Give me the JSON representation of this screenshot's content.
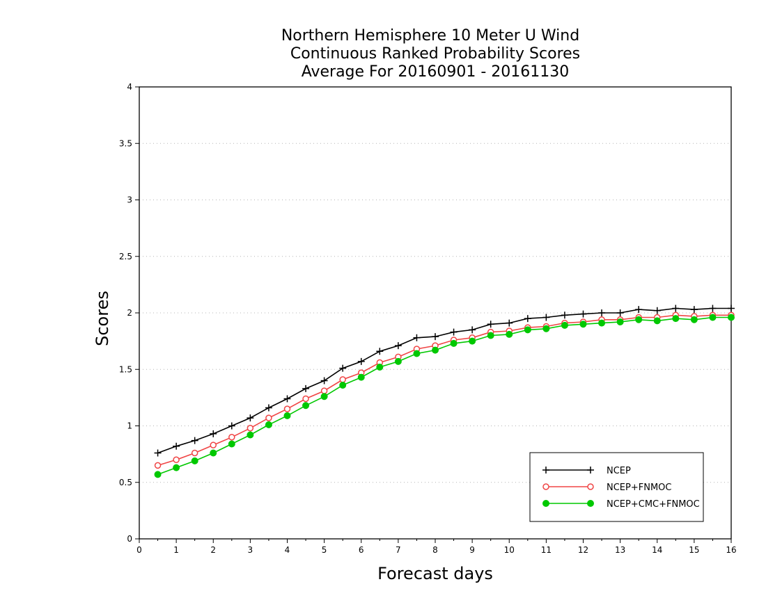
{
  "chart_data": {
    "type": "line",
    "title": [
      "Northern Hemisphere 10 Meter U Wind",
      "Continuous Ranked Probability Scores",
      "Average For 20160901 - 20161130"
    ],
    "xlabel": "Forecast days",
    "ylabel": "Scores",
    "xlim": [
      0,
      16
    ],
    "ylim": [
      0,
      4
    ],
    "x_ticks": [
      "0",
      "1",
      "2",
      "3",
      "4",
      "5",
      "6",
      "7",
      "8",
      "9",
      "10",
      "11",
      "12",
      "13",
      "14",
      "15",
      "16"
    ],
    "y_ticks": [
      "0",
      "0.5",
      "1",
      "1.5",
      "2",
      "2.5",
      "3",
      "3.5",
      "4"
    ],
    "grid": "horizontal dotted",
    "legend_position": "bottom-right",
    "x": [
      0.5,
      1,
      1.5,
      2,
      2.5,
      3,
      3.5,
      4,
      4.5,
      5,
      5.5,
      6,
      6.5,
      7,
      7.5,
      8,
      8.5,
      9,
      9.5,
      10,
      10.5,
      11,
      11.5,
      12,
      12.5,
      13,
      13.5,
      14,
      14.5,
      15,
      15.5,
      16
    ],
    "series": [
      {
        "name": "NCEP",
        "color": "#000000",
        "marker": "plus",
        "values": [
          0.76,
          0.82,
          0.87,
          0.93,
          1.0,
          1.07,
          1.16,
          1.24,
          1.33,
          1.4,
          1.51,
          1.57,
          1.66,
          1.71,
          1.78,
          1.79,
          1.83,
          1.85,
          1.9,
          1.91,
          1.95,
          1.96,
          1.98,
          1.99,
          2.0,
          2.0,
          2.03,
          2.02,
          2.04,
          2.03,
          2.04,
          2.04
        ]
      },
      {
        "name": "NCEP+FNMOC",
        "color": "#f04545",
        "marker": "open-circle",
        "values": [
          0.65,
          0.7,
          0.76,
          0.83,
          0.9,
          0.98,
          1.07,
          1.15,
          1.24,
          1.31,
          1.41,
          1.47,
          1.56,
          1.61,
          1.68,
          1.71,
          1.76,
          1.78,
          1.83,
          1.84,
          1.87,
          1.88,
          1.91,
          1.92,
          1.94,
          1.94,
          1.96,
          1.96,
          1.98,
          1.97,
          1.98,
          1.98
        ]
      },
      {
        "name": "NCEP+CMC+FNMOC",
        "color": "#00c800",
        "marker": "filled-circle",
        "values": [
          0.57,
          0.63,
          0.69,
          0.76,
          0.84,
          0.92,
          1.01,
          1.09,
          1.18,
          1.26,
          1.36,
          1.43,
          1.52,
          1.57,
          1.64,
          1.67,
          1.73,
          1.75,
          1.8,
          1.81,
          1.85,
          1.86,
          1.89,
          1.9,
          1.91,
          1.92,
          1.94,
          1.93,
          1.95,
          1.94,
          1.96,
          1.96
        ]
      }
    ]
  }
}
